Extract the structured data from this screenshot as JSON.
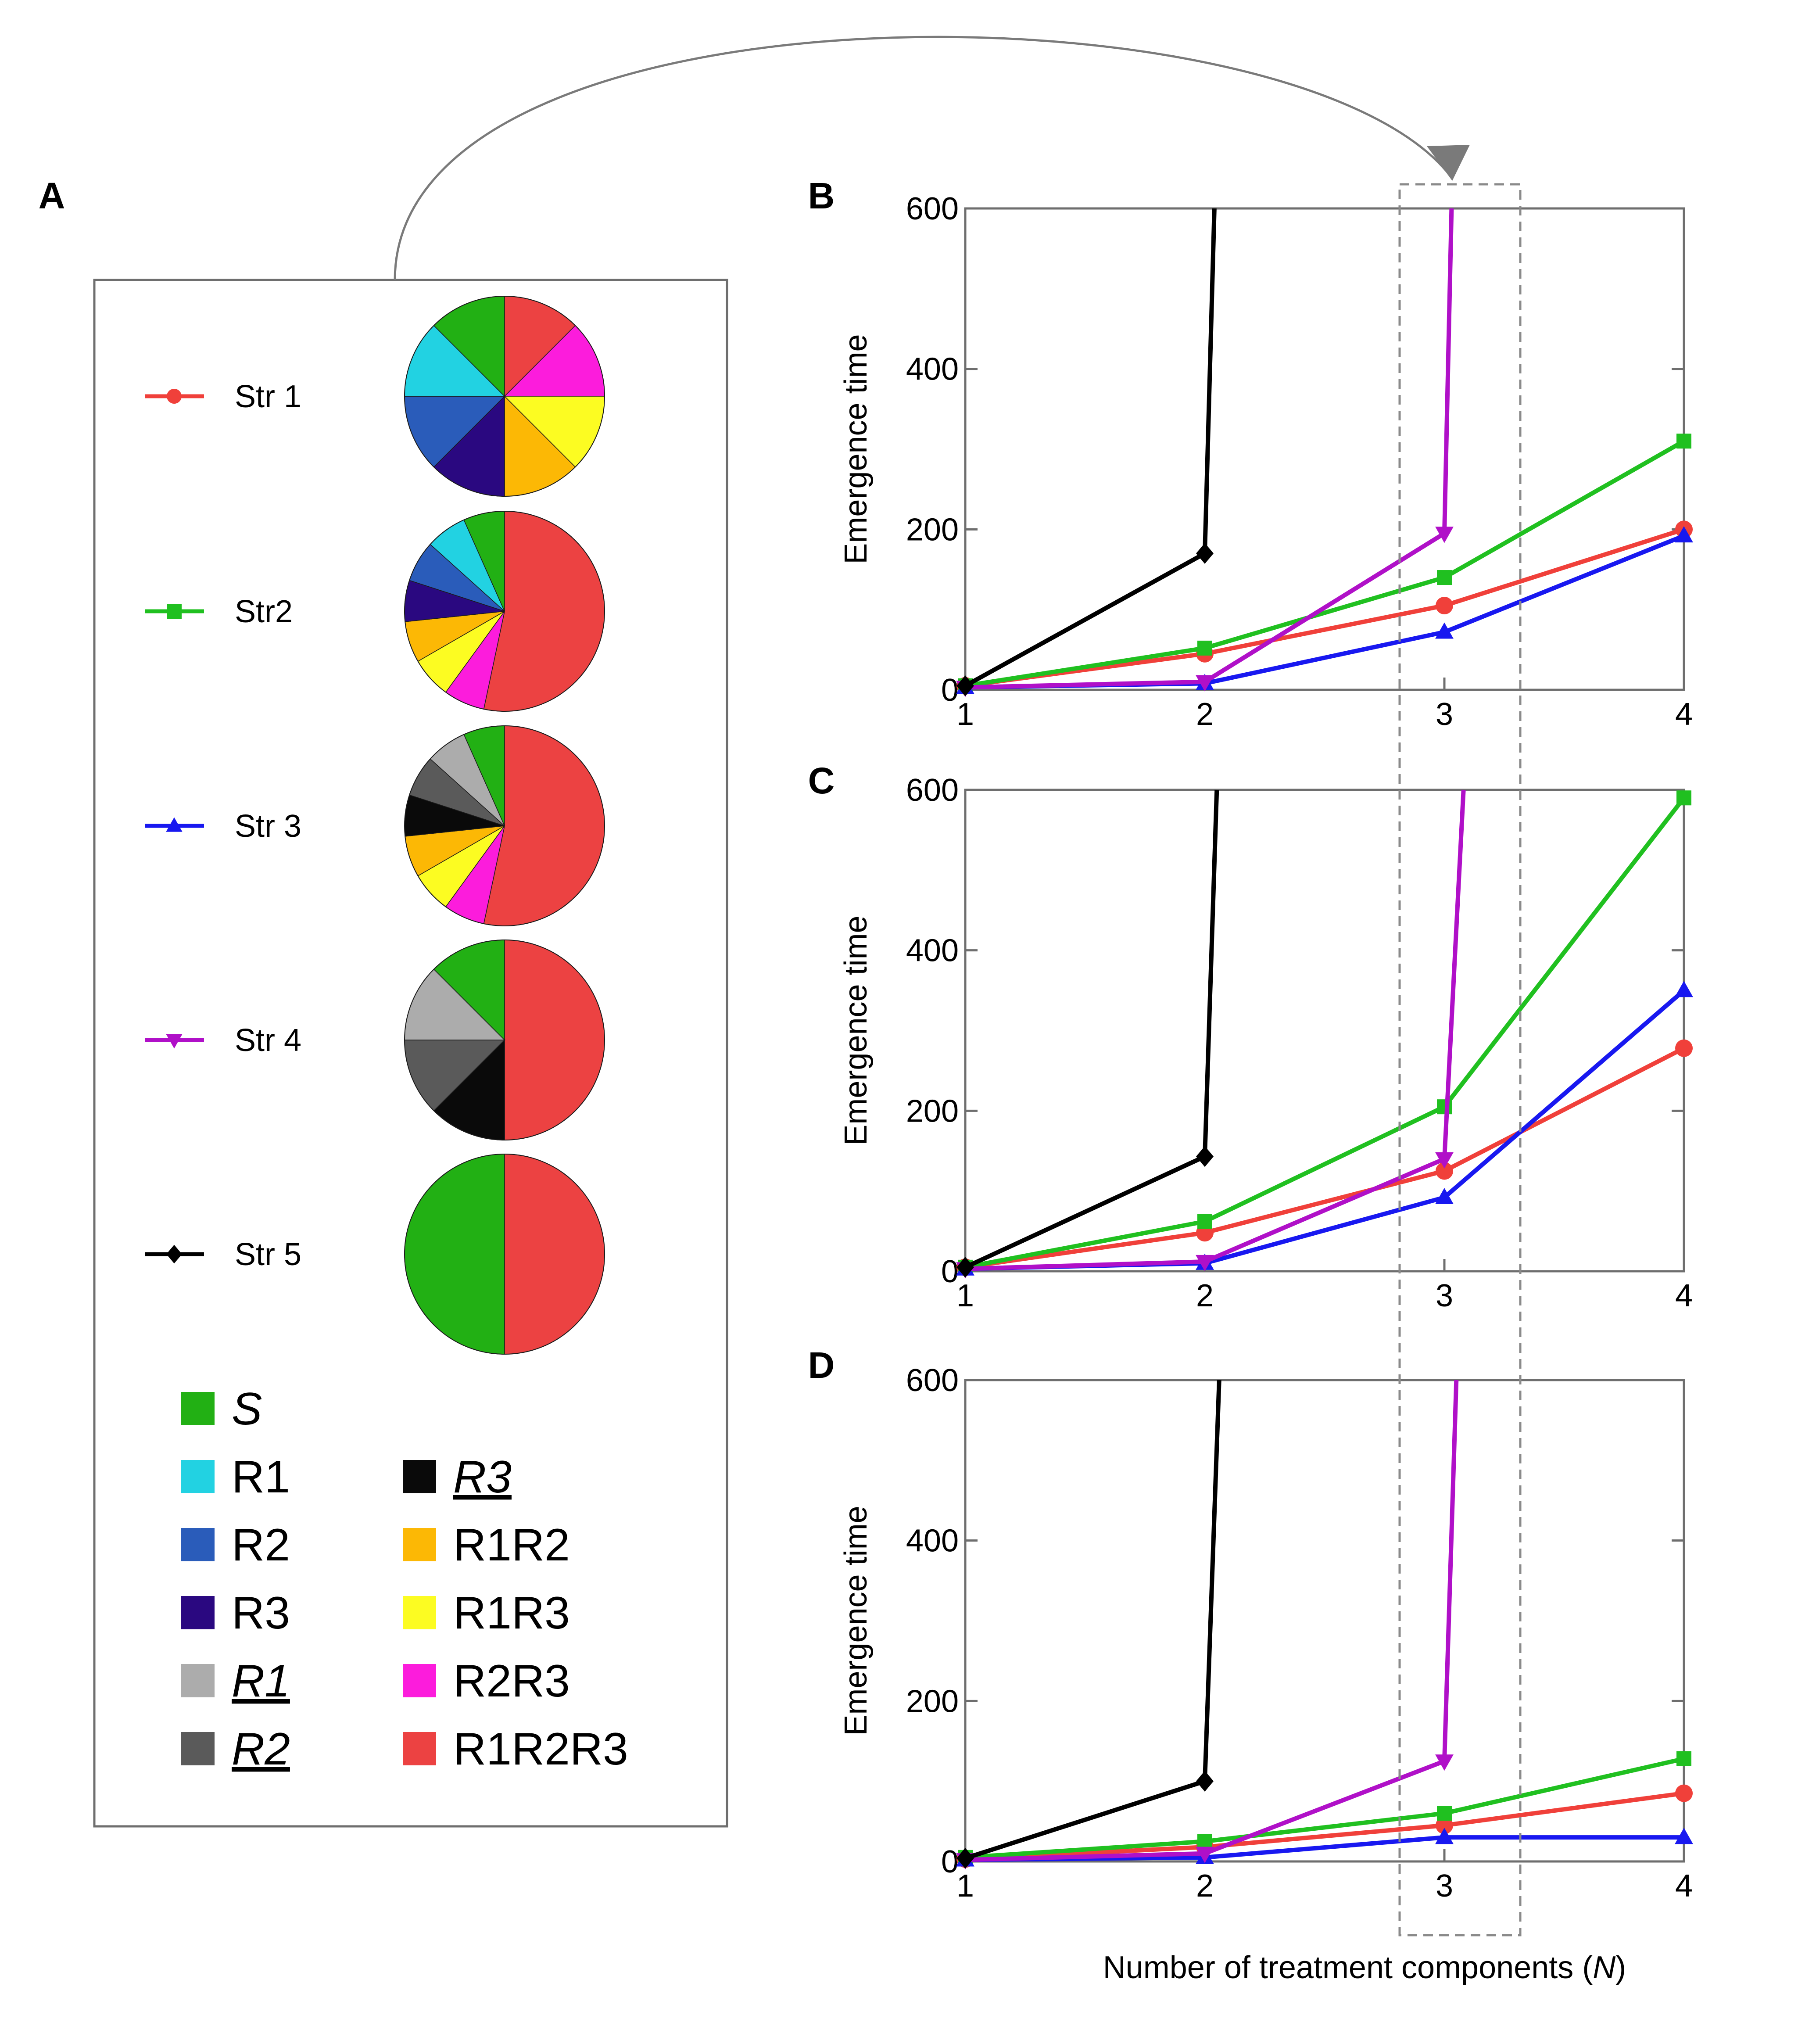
{
  "figure": {
    "panel_labels": [
      "A",
      "B",
      "C",
      "D"
    ],
    "xlabel_prefix": "Number of treatment components (",
    "xlabel_var": "N",
    "xlabel_suffix": ")"
  },
  "colors": {
    "S": "#22b014",
    "R1": "#22d2e2",
    "R2": "#2a5cba",
    "R3": "#2a0880",
    "R1_u": "#acacac",
    "R2_u": "#5a5a5a",
    "R3_u": "#0a0a0a",
    "R1R2": "#fcb805",
    "R1R3": "#fcfc22",
    "R2R3": "#fc1cdc",
    "R1R2R3": "#ec4242",
    "str1": "#f0403a",
    "str2": "#20c020",
    "str3": "#1818f0",
    "str4": "#b010c8",
    "str5": "#000000"
  },
  "strategies": [
    {
      "id": "str1",
      "label": "Str 1",
      "marker": "circle",
      "pie": [
        [
          "R1R2R3",
          1
        ],
        [
          "R2R3",
          1
        ],
        [
          "R1R3",
          1
        ],
        [
          "R1R2",
          1
        ],
        [
          "R3",
          1
        ],
        [
          "R2",
          1
        ],
        [
          "R1",
          1
        ],
        [
          "S",
          1
        ]
      ]
    },
    {
      "id": "str2",
      "label": "Str2",
      "marker": "square",
      "pie": [
        [
          "R1R2R3",
          8
        ],
        [
          "R2R3",
          1
        ],
        [
          "R1R3",
          1
        ],
        [
          "R1R2",
          1
        ],
        [
          "R3",
          1
        ],
        [
          "R2",
          1
        ],
        [
          "R1",
          1
        ],
        [
          "S",
          1
        ]
      ]
    },
    {
      "id": "str3",
      "label": "Str 3",
      "marker": "triangle-up",
      "pie": [
        [
          "R1R2R3",
          8
        ],
        [
          "R2R3",
          1
        ],
        [
          "R1R3",
          1
        ],
        [
          "R1R2",
          1
        ],
        [
          "R3_u",
          1
        ],
        [
          "R2_u",
          1
        ],
        [
          "R1_u",
          1
        ],
        [
          "S",
          1
        ]
      ]
    },
    {
      "id": "str4",
      "label": "Str 4",
      "marker": "triangle-down",
      "pie": [
        [
          "R1R2R3",
          4
        ],
        [
          "R3_u",
          1
        ],
        [
          "R2_u",
          1
        ],
        [
          "R1_u",
          1
        ],
        [
          "S",
          1
        ]
      ]
    },
    {
      "id": "str5",
      "label": "Str 5",
      "marker": "diamond",
      "pie": [
        [
          "R1R2R3",
          1
        ],
        [
          "S",
          1
        ]
      ]
    }
  ],
  "color_legend": [
    {
      "key": "S",
      "label": "S",
      "style": "italic"
    },
    {
      "key": "R1",
      "label": "R1",
      "style": "normal"
    },
    {
      "key": "R2",
      "label": "R2",
      "style": "normal"
    },
    {
      "key": "R3",
      "label": "R3",
      "style": "normal"
    },
    {
      "key": "R1_u",
      "label": "R1",
      "style": "italic-underline"
    },
    {
      "key": "R2_u",
      "label": "R2",
      "style": "italic-underline"
    },
    {
      "key": "R3_u",
      "label": "R3",
      "style": "italic-underline"
    },
    {
      "key": "R1R2",
      "label": "R1R2",
      "style": "normal"
    },
    {
      "key": "R1R3",
      "label": "R1R3",
      "style": "normal"
    },
    {
      "key": "R2R3",
      "label": "R2R3",
      "style": "normal"
    },
    {
      "key": "R1R2R3",
      "label": "R1R2R3",
      "style": "normal"
    }
  ],
  "chart_data": [
    {
      "panel": "B",
      "type": "line",
      "xlabel": "Number of treatment components (N)",
      "ylabel": "Emergence time",
      "xlim": [
        1,
        4
      ],
      "ylim": [
        0,
        600
      ],
      "xticks": [
        1,
        2,
        3,
        4
      ],
      "yticks": [
        0,
        200,
        400,
        600
      ],
      "series": [
        {
          "name": "Str 1",
          "x": [
            1,
            2,
            3,
            4
          ],
          "y": [
            5,
            45,
            105,
            200
          ]
        },
        {
          "name": "Str2",
          "x": [
            1,
            2,
            3,
            4
          ],
          "y": [
            5,
            52,
            140,
            310
          ]
        },
        {
          "name": "Str 3",
          "x": [
            1,
            2,
            3,
            4
          ],
          "y": [
            3,
            8,
            72,
            192
          ]
        },
        {
          "name": "Str 4",
          "x": [
            1,
            2,
            3,
            3.03
          ],
          "y": [
            3,
            10,
            195,
            600
          ]
        },
        {
          "name": "Str 5",
          "x": [
            1,
            2,
            2.04
          ],
          "y": [
            5,
            170,
            600
          ]
        }
      ]
    },
    {
      "panel": "C",
      "type": "line",
      "xlabel": "Number of treatment components (N)",
      "ylabel": "Emergence time",
      "xlim": [
        1,
        4
      ],
      "ylim": [
        0,
        600
      ],
      "xticks": [
        1,
        2,
        3,
        4
      ],
      "yticks": [
        0,
        200,
        400,
        600
      ],
      "series": [
        {
          "name": "Str 1",
          "x": [
            1,
            2,
            3,
            4
          ],
          "y": [
            5,
            48,
            125,
            278
          ]
        },
        {
          "name": "Str2",
          "x": [
            1,
            2,
            3,
            4
          ],
          "y": [
            5,
            62,
            205,
            590
          ]
        },
        {
          "name": "Str 3",
          "x": [
            1,
            2,
            3,
            4
          ],
          "y": [
            3,
            10,
            92,
            350
          ]
        },
        {
          "name": "Str 4",
          "x": [
            1,
            2,
            3,
            3.08
          ],
          "y": [
            3,
            12,
            140,
            600
          ]
        },
        {
          "name": "Str 5",
          "x": [
            1,
            2,
            2.05
          ],
          "y": [
            5,
            143,
            600
          ]
        }
      ]
    },
    {
      "panel": "D",
      "type": "line",
      "xlabel": "Number of treatment components (N)",
      "ylabel": "Emergence time",
      "xlim": [
        1,
        4
      ],
      "ylim": [
        0,
        600
      ],
      "xticks": [
        1,
        2,
        3,
        4
      ],
      "yticks": [
        0,
        200,
        400,
        600
      ],
      "series": [
        {
          "name": "Str 1",
          "x": [
            1,
            2,
            3,
            4
          ],
          "y": [
            3,
            18,
            45,
            85
          ]
        },
        {
          "name": "Str2",
          "x": [
            1,
            2,
            3,
            4
          ],
          "y": [
            5,
            25,
            60,
            128
          ]
        },
        {
          "name": "Str 3",
          "x": [
            1,
            2,
            3,
            4
          ],
          "y": [
            2,
            5,
            30,
            30
          ]
        },
        {
          "name": "Str 4",
          "x": [
            1,
            2,
            3,
            3.05
          ],
          "y": [
            2,
            10,
            125,
            600
          ]
        },
        {
          "name": "Str 5",
          "x": [
            1,
            2,
            2.06
          ],
          "y": [
            4,
            100,
            600
          ]
        }
      ]
    }
  ]
}
